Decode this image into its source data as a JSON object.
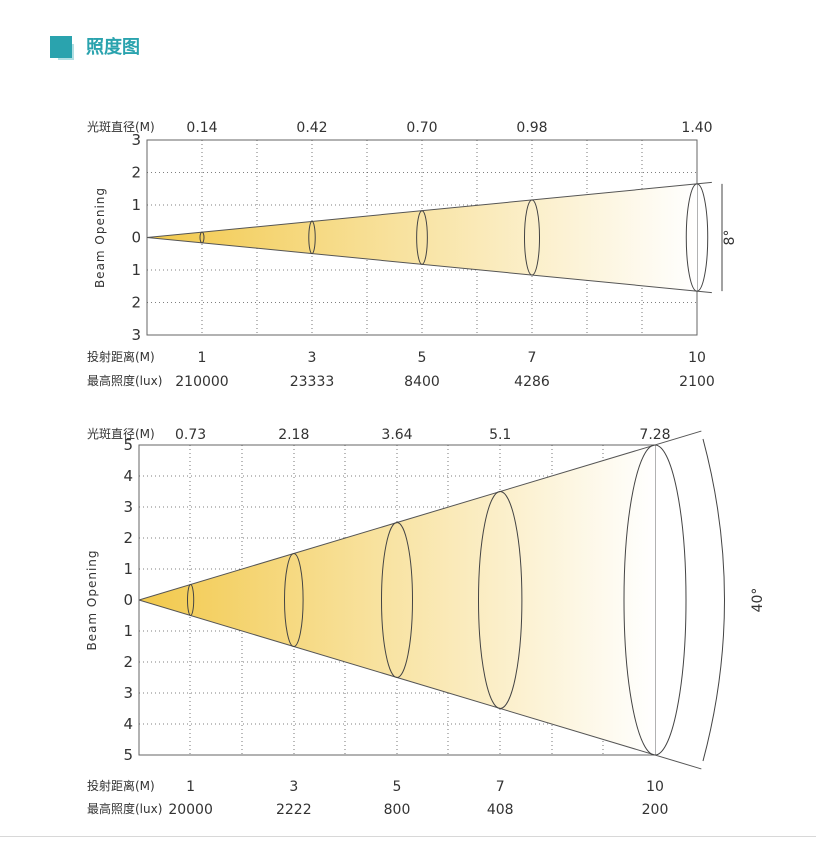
{
  "header": {
    "title": "照度图",
    "accent_color": "#2aa3ae"
  },
  "colors": {
    "beam_warm": "#f2c94c",
    "beam_fade": "#ffffff",
    "axis": "#666666"
  },
  "chart_data": [
    {
      "type": "beam-diagram",
      "title": "",
      "beam_angle_label": "8°",
      "ylabel": "Beam Opening",
      "y_tick_labels": [
        "3",
        "2",
        "1",
        "0",
        "1",
        "2",
        "3"
      ],
      "ylim": [
        -3,
        3
      ],
      "spot_diameter_label": "光斑直径(M)",
      "distance_label": "投射距离(M)",
      "illuminance_label": "最高照度(lux)",
      "x_max": 10,
      "distance": [
        1,
        3,
        5,
        7,
        10
      ],
      "distance_labels": [
        "1",
        "3",
        "5",
        "7",
        "10"
      ],
      "spot_diameter": [
        0.14,
        0.42,
        0.7,
        0.98,
        1.4
      ],
      "spot_diameter_labels": [
        "0.14",
        "0.42",
        "0.70",
        "0.98",
        "1.40"
      ],
      "illuminance": [
        210000,
        23333,
        8400,
        4286,
        2100
      ],
      "illuminance_labels": [
        "210000",
        "23333",
        "8400",
        "4286",
        "2100"
      ],
      "grid": true
    },
    {
      "type": "beam-diagram",
      "title": "",
      "beam_angle_label": "40°",
      "ylabel": "Beam Opening",
      "y_tick_labels": [
        "5",
        "4",
        "3",
        "2",
        "1",
        "0",
        "1",
        "2",
        "3",
        "4",
        "5"
      ],
      "ylim": [
        -5,
        5
      ],
      "spot_diameter_label": "光斑直径(M)",
      "distance_label": "投射距离(M)",
      "illuminance_label": "最高照度(lux)",
      "x_max": 10,
      "distance": [
        1,
        3,
        5,
        7,
        10
      ],
      "distance_labels": [
        "1",
        "3",
        "5",
        "7",
        "10"
      ],
      "spot_diameter": [
        0.73,
        2.18,
        3.64,
        5.1,
        7.28
      ],
      "spot_diameter_labels": [
        "0.73",
        "2.18",
        "3.64",
        "5.1",
        "7.28"
      ],
      "illuminance": [
        20000,
        2222,
        800,
        408,
        200
      ],
      "illuminance_labels": [
        "20000",
        "2222",
        "800",
        "408",
        "200"
      ],
      "grid": true
    }
  ]
}
